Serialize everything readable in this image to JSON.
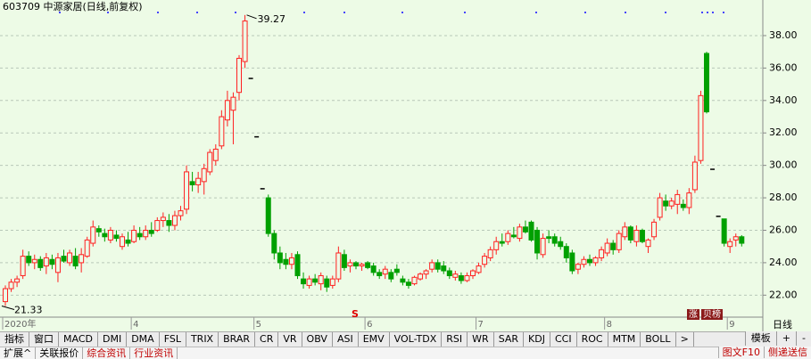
{
  "chart_data": {
    "type": "candlestick",
    "title": "603709 中源家居(日线,前复权)",
    "ylim": [
      20.7,
      39.92
    ],
    "yticks": [
      {
        "value": 22,
        "label": "22.00"
      },
      {
        "value": 24,
        "label": "24.00"
      },
      {
        "value": 26,
        "label": "26.00"
      },
      {
        "value": 28,
        "label": "28.00"
      },
      {
        "value": 30,
        "label": "30.00"
      },
      {
        "value": 32,
        "label": "32.00"
      },
      {
        "value": 34,
        "label": "34.00"
      },
      {
        "value": 36,
        "label": "36.00"
      },
      {
        "value": 38,
        "label": "38.00"
      }
    ],
    "grid": true,
    "up_color": "#ff2020",
    "down_color": "#00a000",
    "x_labels": [
      {
        "at": 0,
        "label": "2020年"
      },
      {
        "at": 22,
        "label": "4"
      },
      {
        "at": 43,
        "label": "5"
      },
      {
        "at": 62,
        "label": "6"
      },
      {
        "at": 81,
        "label": "7"
      },
      {
        "at": 103,
        "label": "8"
      },
      {
        "at": 124,
        "label": "9"
      }
    ],
    "high_index": 41,
    "low_index": 0,
    "candles": [
      [
        21.6,
        22.6,
        21.33,
        22.4
      ],
      [
        22.4,
        23.0,
        22.2,
        22.8
      ],
      [
        22.8,
        23.2,
        22.5,
        23.0
      ],
      [
        23.2,
        24.8,
        23.0,
        24.4
      ],
      [
        24.4,
        24.7,
        23.8,
        24.0
      ],
      [
        24.0,
        24.5,
        23.6,
        24.2
      ],
      [
        24.2,
        24.4,
        23.5,
        23.7
      ],
      [
        23.8,
        24.6,
        23.3,
        24.3
      ],
      [
        24.2,
        24.5,
        23.6,
        23.9
      ],
      [
        23.4,
        24.6,
        22.8,
        24.3
      ],
      [
        24.4,
        24.8,
        24.0,
        24.1
      ],
      [
        24.0,
        24.8,
        23.8,
        24.6
      ],
      [
        24.4,
        24.9,
        23.6,
        23.8
      ],
      [
        24.0,
        24.9,
        23.4,
        24.5
      ],
      [
        24.4,
        25.6,
        24.3,
        25.4
      ],
      [
        25.2,
        26.6,
        25.0,
        26.2
      ],
      [
        26.1,
        26.3,
        25.6,
        25.9
      ],
      [
        25.8,
        26.1,
        25.3,
        25.6
      ],
      [
        25.4,
        26.2,
        25.2,
        26.0
      ],
      [
        25.7,
        26.0,
        25.3,
        25.5
      ],
      [
        25.0,
        25.8,
        24.8,
        25.6
      ],
      [
        25.4,
        25.9,
        25.0,
        25.2
      ],
      [
        25.3,
        26.3,
        25.2,
        26.0
      ],
      [
        25.8,
        26.2,
        25.4,
        25.6
      ],
      [
        25.6,
        26.3,
        25.4,
        26.0
      ],
      [
        26.0,
        26.5,
        25.6,
        25.8
      ],
      [
        26.0,
        26.8,
        25.9,
        26.6
      ],
      [
        26.6,
        27.1,
        26.2,
        26.8
      ],
      [
        26.6,
        27.0,
        25.9,
        26.3
      ],
      [
        26.3,
        27.2,
        26.0,
        26.9
      ],
      [
        26.9,
        27.5,
        26.6,
        27.2
      ],
      [
        27.3,
        30.0,
        27.0,
        29.6
      ],
      [
        29.0,
        29.6,
        28.4,
        28.8
      ],
      [
        28.8,
        29.6,
        28.3,
        29.2
      ],
      [
        29.0,
        30.1,
        28.2,
        29.8
      ],
      [
        29.6,
        31.0,
        29.4,
        30.8
      ],
      [
        30.3,
        31.3,
        30.0,
        31.0
      ],
      [
        31.2,
        33.4,
        31.0,
        33.0
      ],
      [
        32.8,
        34.6,
        32.4,
        34.0
      ],
      [
        33.4,
        34.5,
        31.3,
        34.2
      ],
      [
        34.5,
        36.8,
        34.0,
        36.6
      ],
      [
        36.4,
        39.27,
        36.0,
        38.9
      ],
      [
        35.4,
        35.4,
        35.4,
        35.4
      ],
      [
        31.8,
        31.8,
        31.8,
        31.8
      ],
      [
        28.6,
        28.6,
        28.6,
        28.6
      ],
      [
        28.0,
        28.2,
        25.6,
        25.8
      ],
      [
        25.8,
        26.0,
        24.2,
        24.6
      ],
      [
        24.6,
        25.0,
        23.6,
        24.0
      ],
      [
        24.2,
        24.6,
        23.6,
        23.9
      ],
      [
        23.9,
        24.6,
        23.6,
        24.3
      ],
      [
        24.5,
        24.7,
        23.0,
        23.2
      ],
      [
        23.0,
        23.4,
        22.4,
        22.7
      ],
      [
        22.6,
        23.2,
        22.4,
        23.0
      ],
      [
        23.0,
        23.3,
        22.6,
        22.8
      ],
      [
        22.7,
        23.4,
        22.3,
        23.2
      ],
      [
        23.0,
        23.2,
        22.2,
        22.5
      ],
      [
        22.6,
        23.2,
        22.4,
        23.0
      ],
      [
        23.0,
        25.0,
        22.8,
        24.6
      ],
      [
        24.5,
        24.8,
        23.5,
        23.7
      ],
      [
        23.8,
        24.2,
        23.4,
        24.0
      ],
      [
        24.0,
        24.1,
        23.6,
        23.8
      ],
      [
        23.8,
        24.0,
        23.5,
        23.9
      ],
      [
        24.0,
        24.1,
        23.6,
        23.7
      ],
      [
        23.8,
        24.0,
        23.2,
        23.4
      ],
      [
        23.4,
        23.6,
        23.0,
        23.2
      ],
      [
        23.3,
        23.8,
        23.0,
        23.6
      ],
      [
        23.4,
        23.6,
        22.8,
        23.0
      ],
      [
        23.6,
        23.9,
        23.2,
        23.4
      ],
      [
        23.0,
        23.2,
        22.6,
        22.8
      ],
      [
        22.8,
        23.0,
        22.4,
        22.6
      ],
      [
        22.7,
        23.2,
        22.6,
        23.1
      ],
      [
        23.0,
        23.4,
        22.9,
        23.3
      ],
      [
        23.3,
        23.6,
        23.0,
        23.5
      ],
      [
        23.6,
        24.2,
        23.4,
        24.0
      ],
      [
        24.0,
        24.2,
        23.4,
        23.6
      ],
      [
        23.8,
        24.1,
        23.3,
        23.5
      ],
      [
        23.5,
        23.7,
        23.0,
        23.2
      ],
      [
        23.1,
        23.5,
        22.9,
        23.3
      ],
      [
        23.2,
        23.4,
        22.7,
        22.9
      ],
      [
        22.9,
        23.4,
        22.8,
        23.2
      ],
      [
        23.2,
        23.6,
        23.0,
        23.5
      ],
      [
        23.4,
        24.0,
        23.3,
        23.8
      ],
      [
        23.9,
        24.6,
        23.7,
        24.4
      ],
      [
        24.3,
        25.0,
        24.1,
        24.8
      ],
      [
        24.8,
        25.6,
        24.5,
        25.3
      ],
      [
        25.3,
        25.8,
        25.0,
        25.2
      ],
      [
        25.3,
        26.0,
        25.1,
        25.8
      ],
      [
        25.7,
        26.2,
        25.5,
        25.6
      ],
      [
        25.5,
        26.4,
        25.3,
        26.2
      ],
      [
        26.2,
        26.6,
        25.8,
        25.9
      ],
      [
        26.5,
        26.6,
        25.3,
        25.4
      ],
      [
        26.0,
        26.2,
        24.2,
        24.6
      ],
      [
        24.5,
        25.8,
        24.3,
        25.5
      ],
      [
        25.6,
        26.0,
        25.2,
        25.5
      ],
      [
        25.6,
        25.8,
        25.0,
        25.2
      ],
      [
        25.3,
        25.6,
        24.8,
        25.0
      ],
      [
        25.0,
        25.2,
        24.0,
        24.3
      ],
      [
        24.6,
        24.8,
        23.3,
        23.5
      ],
      [
        23.6,
        24.0,
        23.3,
        23.9
      ],
      [
        23.9,
        24.4,
        23.7,
        24.2
      ],
      [
        24.2,
        24.5,
        23.8,
        24.0
      ],
      [
        24.0,
        24.4,
        23.8,
        24.3
      ],
      [
        24.3,
        25.0,
        24.1,
        24.8
      ],
      [
        24.6,
        25.5,
        24.4,
        25.2
      ],
      [
        25.2,
        25.4,
        24.5,
        24.8
      ],
      [
        24.8,
        26.0,
        24.6,
        25.8
      ],
      [
        25.6,
        26.5,
        25.4,
        26.2
      ],
      [
        26.2,
        26.3,
        25.2,
        25.4
      ],
      [
        25.3,
        26.3,
        25.0,
        26.0
      ],
      [
        26.0,
        26.1,
        25.2,
        25.3
      ],
      [
        25.0,
        25.5,
        24.6,
        25.4
      ],
      [
        25.6,
        26.7,
        25.4,
        26.5
      ],
      [
        26.8,
        28.3,
        26.6,
        28.0
      ],
      [
        27.8,
        28.2,
        27.2,
        27.5
      ],
      [
        27.5,
        28.0,
        27.3,
        27.8
      ],
      [
        27.6,
        28.5,
        27.0,
        28.2
      ],
      [
        27.6,
        27.9,
        27.2,
        27.4
      ],
      [
        27.4,
        28.6,
        27.0,
        28.3
      ],
      [
        28.5,
        30.6,
        28.3,
        30.2
      ],
      [
        30.3,
        34.6,
        30.1,
        34.3
      ],
      [
        36.9,
        37.0,
        33.2,
        33.3
      ],
      [
        29.8,
        29.8,
        29.8,
        29.8
      ],
      [
        26.9,
        26.9,
        26.9,
        26.9
      ],
      [
        26.7,
        26.7,
        25.0,
        25.2
      ],
      [
        25.0,
        25.5,
        24.6,
        25.3
      ],
      [
        25.4,
        25.8,
        25.0,
        25.6
      ],
      [
        25.6,
        25.7,
        25.0,
        25.2
      ]
    ],
    "signal": "S",
    "badges": [
      "涨",
      "贝榜"
    ]
  },
  "period": "日线",
  "tabs": [
    "指标",
    "窗口",
    "MACD",
    "DMI",
    "DMA",
    "FSL",
    "TRIX",
    "BRAR",
    "CR",
    "VR",
    "OBV",
    "ASI",
    "EMV",
    "VOL-TDX",
    "RSI",
    "WR",
    "SAR",
    "KDJ",
    "CCI",
    "ROC",
    "MTM",
    "BOLL",
    ">"
  ],
  "tab_tools": [
    "模板",
    "+",
    "-"
  ],
  "bottom_tabs": [
    "扩展^",
    "关联报价",
    "综合资讯",
    "行业资讯"
  ],
  "bottom_right": [
    "图文F10",
    "侧递送信"
  ]
}
